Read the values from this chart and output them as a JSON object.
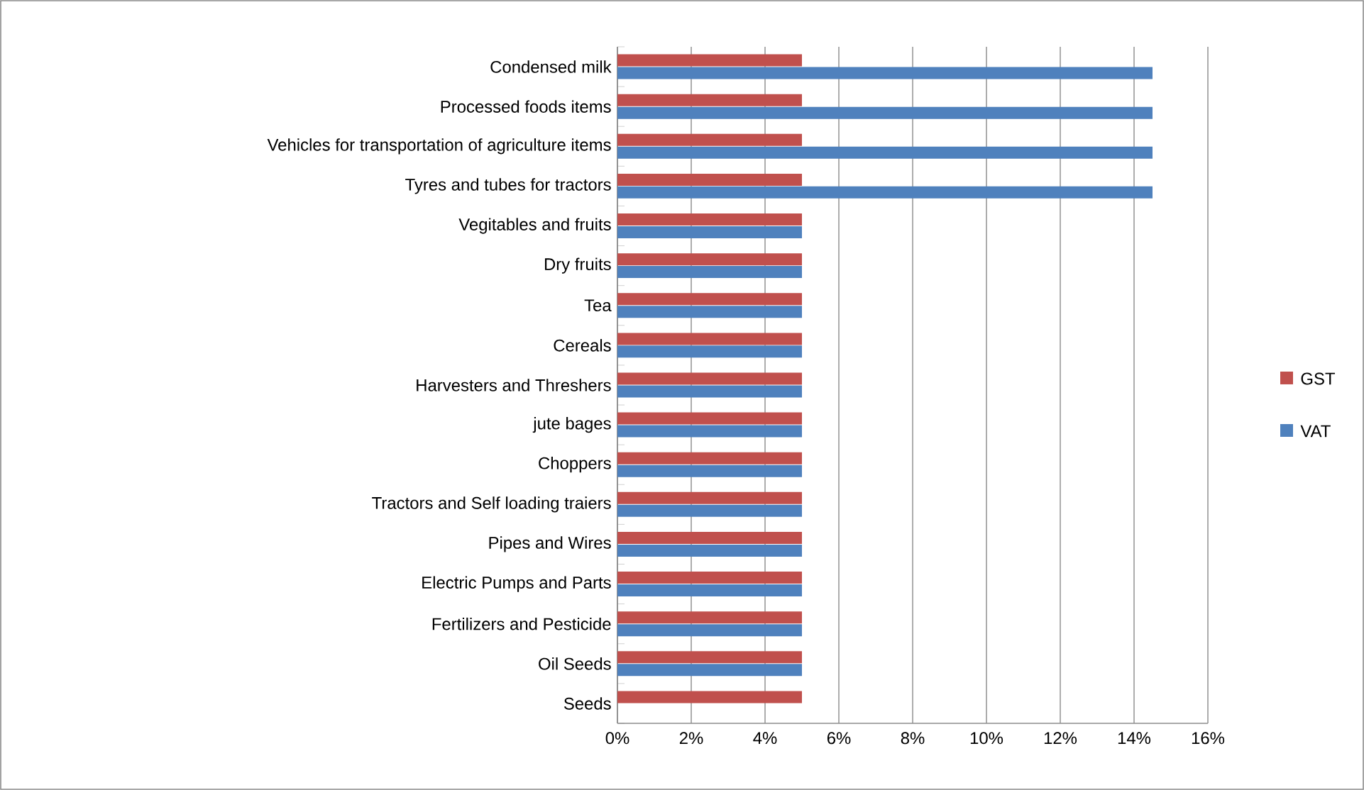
{
  "chart_data": {
    "type": "bar",
    "orientation": "horizontal",
    "categories": [
      "Condensed milk",
      "Processed foods items",
      "Vehicles for transportation of agriculture items",
      "Tyres and tubes for tractors",
      "Vegitables and fruits",
      "Dry fruits",
      "Tea",
      "Cereals",
      "Harvesters and Threshers",
      "jute bages",
      "Choppers",
      "Tractors and Self loading traiers",
      "Pipes and Wires",
      "Electric Pumps and Parts",
      "Fertilizers and Pesticide",
      "Oil Seeds",
      "Seeds"
    ],
    "series": [
      {
        "name": "GST",
        "color": "#c0504d",
        "values": [
          5,
          5,
          5,
          5,
          5,
          5,
          5,
          5,
          5,
          5,
          5,
          5,
          5,
          5,
          5,
          5,
          5
        ]
      },
      {
        "name": "VAT",
        "color": "#4f81bd",
        "values": [
          14.5,
          14.5,
          14.5,
          14.5,
          5,
          5,
          5,
          5,
          5,
          5,
          5,
          5,
          5,
          5,
          5,
          5,
          0
        ]
      }
    ],
    "xlim": [
      0,
      16
    ],
    "xticks": [
      {
        "value": 0,
        "label": "0%"
      },
      {
        "value": 2,
        "label": "2%"
      },
      {
        "value": 4,
        "label": "4%"
      },
      {
        "value": 6,
        "label": "6%"
      },
      {
        "value": 8,
        "label": "8%"
      },
      {
        "value": 10,
        "label": "10%"
      },
      {
        "value": 12,
        "label": "12%"
      },
      {
        "value": 14,
        "label": "14%"
      },
      {
        "value": 16,
        "label": "16%"
      }
    ],
    "grid": "x",
    "legend": "right"
  }
}
